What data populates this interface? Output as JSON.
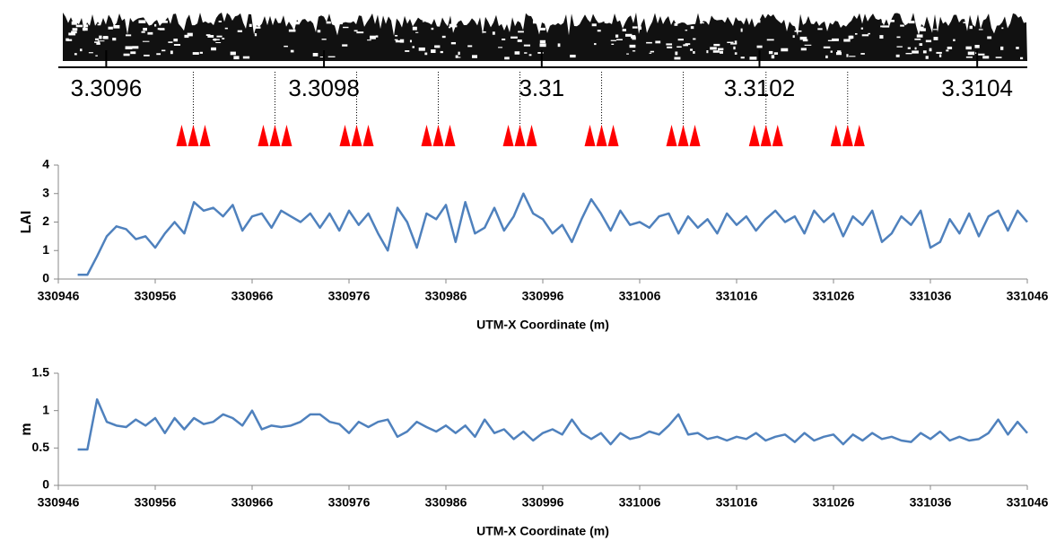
{
  "chart_data": [
    {
      "type": "strip",
      "xlim": [
        3.309556,
        3.310446
      ],
      "xticks": [
        3.3096,
        3.3098,
        3.31,
        3.3102,
        3.3104
      ],
      "markers": [
        3.30968,
        3.309755,
        3.30983,
        3.309905,
        3.30998,
        3.310055,
        3.31013,
        3.310206,
        3.310281
      ],
      "marker_color": "#ff0000"
    },
    {
      "type": "line",
      "ylabel": "LAI",
      "xlabel": "UTM-X Coordinate (m)",
      "xlim": [
        330946,
        331046
      ],
      "xticks": [
        330946,
        330956,
        330966,
        330976,
        330986,
        330996,
        331006,
        331016,
        331026,
        331036,
        331046
      ],
      "ylim": [
        0,
        4
      ],
      "yticks": [
        0,
        1,
        2,
        3,
        4
      ],
      "series": [
        {
          "color": "#4f81bd",
          "x": [
            330948,
            330949,
            330950,
            330951,
            330952,
            330953,
            330954,
            330955,
            330956,
            330957,
            330958,
            330959,
            330960,
            330961,
            330962,
            330963,
            330964,
            330965,
            330966,
            330967,
            330968,
            330969,
            330970,
            330971,
            330972,
            330973,
            330974,
            330975,
            330976,
            330977,
            330978,
            330979,
            330980,
            330981,
            330982,
            330983,
            330984,
            330985,
            330986,
            330987,
            330988,
            330989,
            330990,
            330991,
            330992,
            330993,
            330994,
            330995,
            330996,
            330997,
            330998,
            330999,
            331000,
            331001,
            331002,
            331003,
            331004,
            331005,
            331006,
            331007,
            331008,
            331009,
            331010,
            331011,
            331012,
            331013,
            331014,
            331015,
            331016,
            331017,
            331018,
            331019,
            331020,
            331021,
            331022,
            331023,
            331024,
            331025,
            331026,
            331027,
            331028,
            331029,
            331030,
            331031,
            331032,
            331033,
            331034,
            331035,
            331036,
            331037,
            331038,
            331039,
            331040,
            331041,
            331042,
            331043,
            331044,
            331045,
            331046
          ],
          "values": [
            0.15,
            0.15,
            0.8,
            1.5,
            1.85,
            1.75,
            1.4,
            1.5,
            1.1,
            1.6,
            2.0,
            1.6,
            2.7,
            2.4,
            2.5,
            2.2,
            2.6,
            1.7,
            2.2,
            2.3,
            1.8,
            2.4,
            2.2,
            2.0,
            2.3,
            1.8,
            2.3,
            1.7,
            2.4,
            1.9,
            2.3,
            1.6,
            1.0,
            2.5,
            2.0,
            1.1,
            2.3,
            2.1,
            2.6,
            1.3,
            2.7,
            1.6,
            1.8,
            2.5,
            1.7,
            2.2,
            3.0,
            2.3,
            2.1,
            1.6,
            1.9,
            1.3,
            2.1,
            2.8,
            2.3,
            1.7,
            2.4,
            1.9,
            2.0,
            1.8,
            2.2,
            2.3,
            1.6,
            2.2,
            1.8,
            2.1,
            1.6,
            2.3,
            1.9,
            2.2,
            1.7,
            2.1,
            2.4,
            2.0,
            2.2,
            1.6,
            2.4,
            2.0,
            2.3,
            1.5,
            2.2,
            1.9,
            2.4,
            1.3,
            1.6,
            2.2,
            1.9,
            2.4,
            1.1,
            1.3,
            2.1,
            1.6,
            2.3,
            1.5,
            2.2,
            2.4,
            1.7,
            2.4,
            2.0
          ]
        }
      ]
    },
    {
      "type": "line",
      "ylabel": "m",
      "xlabel": "UTM-X Coordinate (m)",
      "xlim": [
        330946,
        331046
      ],
      "xticks": [
        330946,
        330956,
        330966,
        330976,
        330986,
        330996,
        331006,
        331016,
        331026,
        331036,
        331046
      ],
      "ylim": [
        0,
        1.5
      ],
      "yticks": [
        0,
        0.5,
        1,
        1.5
      ],
      "series": [
        {
          "color": "#4f81bd",
          "x": [
            330948,
            330949,
            330950,
            330951,
            330952,
            330953,
            330954,
            330955,
            330956,
            330957,
            330958,
            330959,
            330960,
            330961,
            330962,
            330963,
            330964,
            330965,
            330966,
            330967,
            330968,
            330969,
            330970,
            330971,
            330972,
            330973,
            330974,
            330975,
            330976,
            330977,
            330978,
            330979,
            330980,
            330981,
            330982,
            330983,
            330984,
            330985,
            330986,
            330987,
            330988,
            330989,
            330990,
            330991,
            330992,
            330993,
            330994,
            330995,
            330996,
            330997,
            330998,
            330999,
            331000,
            331001,
            331002,
            331003,
            331004,
            331005,
            331006,
            331007,
            331008,
            331009,
            331010,
            331011,
            331012,
            331013,
            331014,
            331015,
            331016,
            331017,
            331018,
            331019,
            331020,
            331021,
            331022,
            331023,
            331024,
            331025,
            331026,
            331027,
            331028,
            331029,
            331030,
            331031,
            331032,
            331033,
            331034,
            331035,
            331036,
            331037,
            331038,
            331039,
            331040,
            331041,
            331042,
            331043,
            331044,
            331045,
            331046
          ],
          "values": [
            0.48,
            0.48,
            1.15,
            0.85,
            0.8,
            0.78,
            0.88,
            0.8,
            0.9,
            0.7,
            0.9,
            0.75,
            0.9,
            0.82,
            0.85,
            0.95,
            0.9,
            0.8,
            1.0,
            0.75,
            0.8,
            0.78,
            0.8,
            0.85,
            0.95,
            0.95,
            0.85,
            0.82,
            0.7,
            0.85,
            0.78,
            0.85,
            0.88,
            0.65,
            0.72,
            0.85,
            0.78,
            0.72,
            0.8,
            0.7,
            0.8,
            0.65,
            0.88,
            0.7,
            0.75,
            0.62,
            0.72,
            0.6,
            0.7,
            0.75,
            0.68,
            0.88,
            0.7,
            0.62,
            0.7,
            0.55,
            0.7,
            0.62,
            0.65,
            0.72,
            0.68,
            0.8,
            0.95,
            0.68,
            0.7,
            0.62,
            0.65,
            0.6,
            0.65,
            0.62,
            0.7,
            0.6,
            0.65,
            0.68,
            0.58,
            0.7,
            0.6,
            0.65,
            0.68,
            0.55,
            0.68,
            0.6,
            0.7,
            0.62,
            0.65,
            0.6,
            0.58,
            0.7,
            0.62,
            0.72,
            0.6,
            0.65,
            0.6,
            0.62,
            0.7,
            0.88,
            0.68,
            0.85,
            0.7
          ]
        }
      ]
    }
  ]
}
